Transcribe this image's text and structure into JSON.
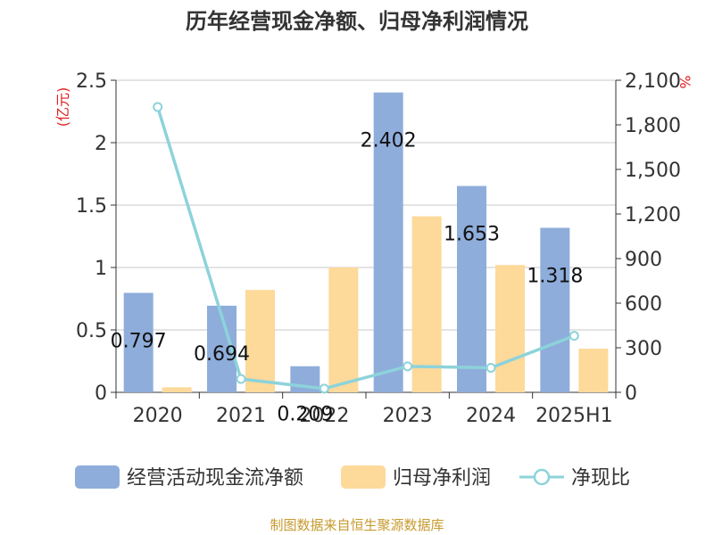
{
  "chart_data": {
    "type": "bar",
    "title": "历年经营现金净额、归母净利润情况",
    "categories": [
      "2020",
      "2021",
      "2022",
      "2023",
      "2024",
      "2025H1"
    ],
    "series": [
      {
        "name": "经营活动现金流净额",
        "axis": "left",
        "kind": "bar",
        "color": "#8EADDB",
        "values": [
          0.797,
          0.694,
          0.209,
          2.402,
          1.653,
          1.318
        ],
        "labels": [
          "0.797",
          "0.694",
          "0.209",
          "2.402",
          "1.653",
          "1.318"
        ]
      },
      {
        "name": "归母净利润",
        "axis": "left",
        "kind": "bar",
        "color": "#FDD99A",
        "values": [
          0.04,
          0.82,
          1.0,
          1.41,
          1.02,
          0.35
        ]
      },
      {
        "name": "净现比",
        "axis": "right",
        "kind": "line",
        "color": "#8DD3DA",
        "values": [
          1920,
          90,
          25,
          175,
          165,
          380
        ]
      }
    ],
    "ylabel": "(亿元)",
    "ylabel_right": "%",
    "ylim": [
      0,
      2.5
    ],
    "ylim_right": [
      0,
      2100
    ],
    "yticks": [
      "0",
      "0.5",
      "1",
      "1.5",
      "2",
      "2.5"
    ],
    "yticks_right": [
      "0",
      "300",
      "600",
      "900",
      "1,200",
      "1,500",
      "1,800",
      "2,100"
    ],
    "grid": true,
    "legend_position": "bottom"
  },
  "source_note": "制图数据来自恒生聚源数据库"
}
